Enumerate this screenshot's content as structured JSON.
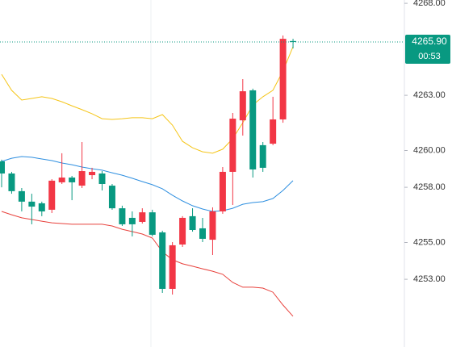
{
  "chart_data": {
    "type": "candlestick",
    "up_color": "#f23645",
    "down_color": "#089981",
    "open": [
      4259.41,
      4258.75,
      4257.79,
      4257.22,
      4257.13,
      4256.78,
      4258.27,
      4258.53,
      4258.09,
      4258.66,
      4258.75,
      4258.09,
      4256.86,
      4256.34,
      4256.12,
      4256.64,
      4255.55,
      4252.48,
      4254.89,
      4256.43,
      4255.77,
      4255.15,
      4256.69,
      4258.84,
      4261.64,
      4263.27,
      4260.29,
      4260.37,
      4261.69,
      4265.95
    ],
    "high": [
      4259.5,
      4258.84,
      4257.96,
      4257.65,
      4257.22,
      4258.44,
      4259.85,
      4258.62,
      4260.46,
      4259.06,
      4258.88,
      4258.18,
      4257.0,
      4256.69,
      4256.86,
      4256.78,
      4255.64,
      4255.02,
      4256.43,
      4256.86,
      4256.34,
      4256.91,
      4259.1,
      4262.04,
      4263.88,
      4263.36,
      4260.46,
      4262.92,
      4266.25,
      4266.07
    ],
    "low": [
      4258.0,
      4257.65,
      4256.69,
      4255.99,
      4256.43,
      4256.6,
      4258.18,
      4257.3,
      4257.96,
      4258.44,
      4257.83,
      4256.78,
      4255.9,
      4255.33,
      4256.03,
      4255.33,
      4252.26,
      4252.17,
      4254.76,
      4255.59,
      4255.02,
      4254.32,
      4256.56,
      4257.04,
      4260.81,
      4258.53,
      4258.84,
      4260.29,
      4261.51,
      4265.55
    ],
    "close": [
      4258.75,
      4257.79,
      4257.22,
      4256.95,
      4256.69,
      4258.36,
      4258.53,
      4258.27,
      4258.88,
      4258.84,
      4258.18,
      4256.86,
      4255.99,
      4255.99,
      4256.64,
      4255.42,
      4252.48,
      4254.85,
      4256.34,
      4255.68,
      4255.2,
      4256.69,
      4258.84,
      4261.73,
      4263.22,
      4258.97,
      4259.06,
      4261.69,
      4266.07,
      4265.9
    ],
    "bands": [
      {
        "color": "#f5c518",
        "values": [
          4264.14,
          4263.27,
          4262.74,
          4262.83,
          4262.92,
          4262.83,
          4262.65,
          4262.43,
          4262.22,
          4262.0,
          4261.73,
          4261.69,
          4261.73,
          4261.78,
          4261.78,
          4261.73,
          4261.95,
          4261.38,
          4260.5,
          4260.15,
          4259.93,
          4259.85,
          4260.07,
          4260.64,
          4261.51,
          4262.48,
          4262.92,
          4263.27,
          4264.32,
          4265.64
        ]
      },
      {
        "color": "#2e8fe0",
        "values": [
          4259.41,
          4259.58,
          4259.67,
          4259.63,
          4259.54,
          4259.45,
          4259.32,
          4259.23,
          4259.1,
          4259.01,
          4258.93,
          4258.79,
          4258.66,
          4258.49,
          4258.31,
          4258.14,
          4257.92,
          4257.57,
          4257.26,
          4257.0,
          4256.82,
          4256.69,
          4256.73,
          4256.86,
          4257.08,
          4257.17,
          4257.22,
          4257.39,
          4257.83,
          4258.36
        ]
      },
      {
        "color": "#e8413c",
        "values": [
          4256.69,
          4256.51,
          4256.34,
          4256.25,
          4256.16,
          4256.07,
          4256.03,
          4255.99,
          4255.99,
          4255.99,
          4255.99,
          4255.9,
          4255.72,
          4255.59,
          4255.46,
          4255.24,
          4254.5,
          4254.06,
          4253.84,
          4253.71,
          4253.57,
          4253.44,
          4253.27,
          4252.83,
          4252.57,
          4252.57,
          4252.52,
          4252.3,
          4251.6,
          4250.99
        ]
      }
    ],
    "ylim": [
      4249.32,
      4268.18
    ],
    "yticks": [
      {
        "value": 4253,
        "label": "4253.00"
      },
      {
        "value": 4255,
        "label": "4255.00"
      },
      {
        "value": 4258,
        "label": "4258.00"
      },
      {
        "value": 4260,
        "label": "4260.00"
      },
      {
        "value": 4263,
        "label": "4263.00"
      },
      {
        "value": 4268,
        "label": "4268.00"
      }
    ],
    "last_price": {
      "value": 4265.9,
      "label": "4265.90"
    },
    "last_price_color": "#089981",
    "countdown": "00:53"
  }
}
